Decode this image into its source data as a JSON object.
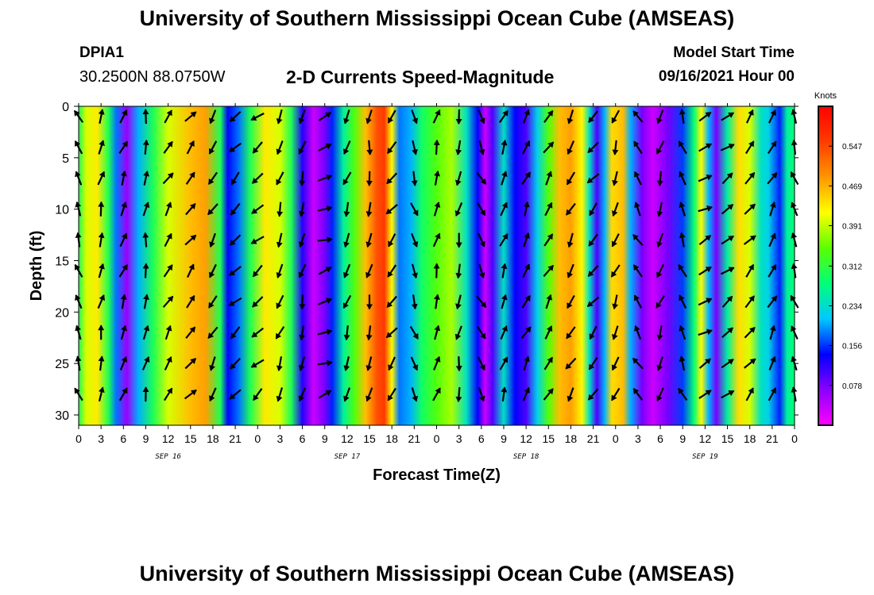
{
  "header": {
    "top_title": "University of Southern Mississippi Ocean Cube (AMSEAS)",
    "bottom_title": "University of Southern Mississippi Ocean Cube (AMSEAS)",
    "station_id": "DPIA1",
    "station_coords": "30.2500N  88.0750W",
    "plot_title": "2-D Currents Speed-Magnitude",
    "model_start_label": "Model Start Time",
    "model_start_value": "09/16/2021 Hour 00"
  },
  "chart_data": {
    "type": "heatmap",
    "title": "2-D Currents Speed-Magnitude",
    "xlabel": "Forecast Time(Z)",
    "ylabel": "Depth (ft)",
    "x_ticks": [
      "0",
      "3",
      "6",
      "9",
      "12",
      "15",
      "18",
      "21",
      "0",
      "3",
      "6",
      "9",
      "12",
      "15",
      "18",
      "21",
      "0",
      "3",
      "6",
      "9",
      "12",
      "15",
      "18",
      "21",
      "0",
      "3",
      "6",
      "9",
      "12",
      "15",
      "18",
      "21",
      "0"
    ],
    "x_range_hours": [
      0,
      96
    ],
    "date_labels": [
      {
        "text": "SEP 16",
        "hour": 12
      },
      {
        "text": "SEP 17",
        "hour": 36
      },
      {
        "text": "SEP 18",
        "hour": 60
      },
      {
        "text": "SEP 19",
        "hour": 84
      }
    ],
    "y_ticks": [
      0,
      5,
      10,
      15,
      20,
      25,
      30
    ],
    "ylim": [
      0,
      31
    ],
    "colorbar": {
      "unit": "Knots",
      "ticks": [
        0.078,
        0.156,
        0.234,
        0.312,
        0.391,
        0.469,
        0.547
      ],
      "range": [
        0,
        0.625
      ],
      "colors": [
        "#ff00ff",
        "#8a00ff",
        "#0000ff",
        "#00c8ff",
        "#00ff7a",
        "#5aff00",
        "#ffff00",
        "#ff9600",
        "#ff3c00",
        "#ff0000"
      ]
    },
    "speed_by_hour": [
      {
        "hour": 0,
        "speed": 0.3
      },
      {
        "hour": 1,
        "speed": 0.4
      },
      {
        "hour": 2.5,
        "speed": 0.43
      },
      {
        "hour": 4,
        "speed": 0.3
      },
      {
        "hour": 5,
        "speed": 0.18
      },
      {
        "hour": 6.5,
        "speed": 0.06
      },
      {
        "hour": 8,
        "speed": 0.2
      },
      {
        "hour": 10,
        "speed": 0.3
      },
      {
        "hour": 12,
        "speed": 0.4
      },
      {
        "hour": 15,
        "speed": 0.46
      },
      {
        "hour": 17,
        "speed": 0.48
      },
      {
        "hour": 19,
        "speed": 0.3
      },
      {
        "hour": 20,
        "speed": 0.14
      },
      {
        "hour": 21.5,
        "speed": 0.18
      },
      {
        "hour": 23,
        "speed": 0.3
      },
      {
        "hour": 25,
        "speed": 0.43
      },
      {
        "hour": 27,
        "speed": 0.4
      },
      {
        "hour": 28.5,
        "speed": 0.3
      },
      {
        "hour": 30,
        "speed": 0.12
      },
      {
        "hour": 31.5,
        "speed": 0.03
      },
      {
        "hour": 33,
        "speed": 0.08
      },
      {
        "hour": 34,
        "speed": 0.15
      },
      {
        "hour": 35.5,
        "speed": 0.26
      },
      {
        "hour": 37,
        "speed": 0.34
      },
      {
        "hour": 38.5,
        "speed": 0.46
      },
      {
        "hour": 40,
        "speed": 0.54
      },
      {
        "hour": 41,
        "speed": 0.56
      },
      {
        "hour": 42,
        "speed": 0.42
      },
      {
        "hour": 43,
        "speed": 0.18
      },
      {
        "hour": 44.5,
        "speed": 0.2
      },
      {
        "hour": 46,
        "speed": 0.29
      },
      {
        "hour": 48,
        "speed": 0.34
      },
      {
        "hour": 50,
        "speed": 0.38
      },
      {
        "hour": 52,
        "speed": 0.24
      },
      {
        "hour": 53.5,
        "speed": 0.14
      },
      {
        "hour": 54.5,
        "speed": 0.03
      },
      {
        "hour": 55.5,
        "speed": 0.1
      },
      {
        "hour": 57,
        "speed": 0.24
      },
      {
        "hour": 58.5,
        "speed": 0.14
      },
      {
        "hour": 60,
        "speed": 0.1
      },
      {
        "hour": 61.5,
        "speed": 0.22
      },
      {
        "hour": 63,
        "speed": 0.34
      },
      {
        "hour": 64.5,
        "speed": 0.46
      },
      {
        "hour": 66,
        "speed": 0.48
      },
      {
        "hour": 67.5,
        "speed": 0.42
      },
      {
        "hour": 68.5,
        "speed": 0.24
      },
      {
        "hour": 69.5,
        "speed": 0.1
      },
      {
        "hour": 70.5,
        "speed": 0.2
      },
      {
        "hour": 71.5,
        "speed": 0.44
      },
      {
        "hour": 73,
        "speed": 0.46
      },
      {
        "hour": 74,
        "speed": 0.2
      },
      {
        "hour": 75.5,
        "speed": 0.08
      },
      {
        "hour": 77,
        "speed": 0.03
      },
      {
        "hour": 79,
        "speed": 0.08
      },
      {
        "hour": 81,
        "speed": 0.16
      },
      {
        "hour": 82.5,
        "speed": 0.28
      },
      {
        "hour": 83.5,
        "speed": 0.42
      },
      {
        "hour": 84.5,
        "speed": 0.2
      },
      {
        "hour": 85.5,
        "speed": 0.08
      },
      {
        "hour": 87,
        "speed": 0.26
      },
      {
        "hour": 88.5,
        "speed": 0.44
      },
      {
        "hour": 90,
        "speed": 0.4
      },
      {
        "hour": 91.5,
        "speed": 0.24
      },
      {
        "hour": 92.5,
        "speed": 0.22
      },
      {
        "hour": 94,
        "speed": 0.15
      },
      {
        "hour": 95,
        "speed": 0.26
      },
      {
        "hour": 96,
        "speed": 0.28
      }
    ],
    "vectors": {
      "depths_ft": [
        1,
        4,
        7,
        10,
        13,
        16,
        19,
        22,
        25,
        28
      ],
      "hours": [
        0,
        3,
        6,
        9,
        12,
        15,
        18,
        21,
        24,
        27,
        30,
        33,
        36,
        39,
        42,
        45,
        48,
        51,
        54,
        57,
        60,
        63,
        66,
        69,
        72,
        75,
        78,
        81,
        84,
        87,
        90,
        93,
        96
      ],
      "direction_deg": [
        340,
        15,
        20,
        10,
        30,
        40,
        210,
        225,
        230,
        200,
        195,
        70,
        200,
        190,
        220,
        160,
        15,
        190,
        155,
        20,
        25,
        30,
        210,
        220,
        200,
        330,
        200,
        340,
        60,
        55,
        40,
        30,
        340
      ],
      "note": "direction in degrees (0 = up/north, clockwise); approximate values read from the arrows"
    }
  }
}
